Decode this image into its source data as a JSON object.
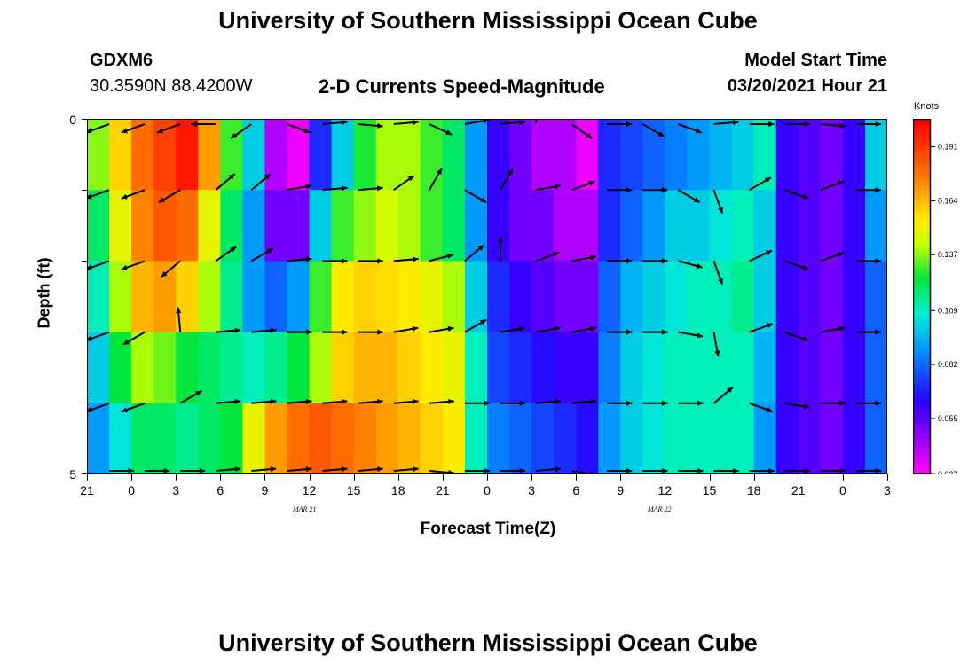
{
  "page": {
    "title_top": "University of Southern Mississippi Ocean Cube",
    "title_bottom": "University of Southern Mississippi Ocean Cube",
    "station_id": "GDXM6",
    "station_coords": "30.3590N 88.4200W",
    "plot_title": "2-D Currents Speed-Magnitude",
    "model_start_label": "Model Start Time",
    "model_start_value": "03/20/2021 Hour 21"
  },
  "chart_data": {
    "type": "heatmap",
    "title": "2-D Currents Speed-Magnitude",
    "xlabel": "Forecast Time(Z)",
    "ylabel": "Depth (ft)",
    "x_tick_labels": [
      "21",
      "0",
      "3",
      "6",
      "9",
      "12",
      "15",
      "18",
      "21",
      "0",
      "3",
      "6",
      "9",
      "12",
      "15",
      "18",
      "21",
      "0",
      "3"
    ],
    "date_labels": [
      "MAR 21",
      "MAR 22"
    ],
    "y_tick_labels": [
      "0",
      "5"
    ],
    "ylim": [
      0,
      5
    ],
    "depth_levels": 5,
    "colorbar": {
      "unit": "Knots",
      "ticks": [
        "0.191",
        "0.164",
        "0.137",
        "0.109",
        "0.082",
        "0.055",
        "0.027"
      ],
      "range": [
        0.027,
        0.205
      ]
    },
    "speed_rows_knots": [
      [
        0.137,
        0.16,
        0.18,
        0.19,
        0.2,
        0.17,
        0.13,
        0.1,
        0.04,
        0.03,
        0.07,
        0.1,
        0.127,
        0.14,
        0.14,
        0.13,
        0.12,
        0.09,
        0.06,
        0.05,
        0.04,
        0.04,
        0.03,
        0.07,
        0.075,
        0.08,
        0.085,
        0.09,
        0.095,
        0.1,
        0.11,
        0.06,
        0.055,
        0.05,
        0.06,
        0.1
      ],
      [
        0.12,
        0.15,
        0.175,
        0.185,
        0.18,
        0.15,
        0.12,
        0.09,
        0.05,
        0.05,
        0.1,
        0.13,
        0.138,
        0.145,
        0.14,
        0.13,
        0.12,
        0.09,
        0.06,
        0.05,
        0.05,
        0.04,
        0.04,
        0.07,
        0.08,
        0.09,
        0.1,
        0.1,
        0.105,
        0.11,
        0.1,
        0.06,
        0.055,
        0.05,
        0.06,
        0.09
      ],
      [
        0.11,
        0.14,
        0.165,
        0.17,
        0.16,
        0.14,
        0.115,
        0.09,
        0.08,
        0.09,
        0.13,
        0.155,
        0.16,
        0.158,
        0.155,
        0.15,
        0.14,
        0.1,
        0.07,
        0.06,
        0.055,
        0.05,
        0.05,
        0.08,
        0.095,
        0.1,
        0.105,
        0.11,
        0.11,
        0.115,
        0.1,
        0.06,
        0.055,
        0.05,
        0.06,
        0.08
      ],
      [
        0.1,
        0.125,
        0.14,
        0.135,
        0.125,
        0.12,
        0.115,
        0.11,
        0.115,
        0.125,
        0.14,
        0.16,
        0.165,
        0.165,
        0.16,
        0.155,
        0.15,
        0.11,
        0.075,
        0.07,
        0.065,
        0.06,
        0.06,
        0.085,
        0.1,
        0.105,
        0.11,
        0.11,
        0.11,
        0.11,
        0.095,
        0.06,
        0.055,
        0.05,
        0.06,
        0.08
      ],
      [
        0.09,
        0.105,
        0.12,
        0.12,
        0.115,
        0.12,
        0.125,
        0.15,
        0.17,
        0.18,
        0.185,
        0.18,
        0.175,
        0.17,
        0.165,
        0.16,
        0.155,
        0.11,
        0.085,
        0.08,
        0.075,
        0.07,
        0.065,
        0.09,
        0.1,
        0.105,
        0.11,
        0.11,
        0.11,
        0.11,
        0.09,
        0.06,
        0.055,
        0.05,
        0.06,
        0.08
      ]
    ],
    "arrow_rows_degrees": [
      [
        200,
        200,
        200,
        180,
        215,
        -20,
        5,
        -5,
        5,
        -25,
        10,
        5,
        90,
        -35,
        0,
        -30,
        -20,
        5,
        0,
        0,
        -5,
        0,
        0
      ],
      [
        200,
        200,
        210,
        40,
        40,
        10,
        5,
        5,
        35,
        60,
        -30,
        60,
        10,
        20,
        0,
        0,
        -30,
        -70,
        30,
        -20,
        20,
        0,
        30
      ],
      [
        200,
        200,
        220,
        35,
        30,
        5,
        0,
        0,
        5,
        15,
        40,
        90,
        20,
        10,
        0,
        0,
        -15,
        -70,
        25,
        -20,
        20,
        0,
        30
      ],
      [
        200,
        210,
        95,
        5,
        5,
        0,
        0,
        0,
        10,
        10,
        30,
        10,
        10,
        10,
        0,
        0,
        -10,
        -80,
        20,
        -20,
        10,
        0,
        5
      ],
      [
        200,
        200,
        30,
        5,
        5,
        5,
        5,
        5,
        5,
        5,
        0,
        0,
        5,
        5,
        0,
        0,
        0,
        40,
        -20,
        -10,
        0,
        0,
        5
      ],
      [
        0,
        0,
        0,
        5,
        5,
        5,
        5,
        5,
        5,
        -5,
        0,
        0,
        5,
        -10,
        0,
        0,
        0,
        0,
        0,
        0,
        0,
        0,
        0
      ]
    ]
  }
}
